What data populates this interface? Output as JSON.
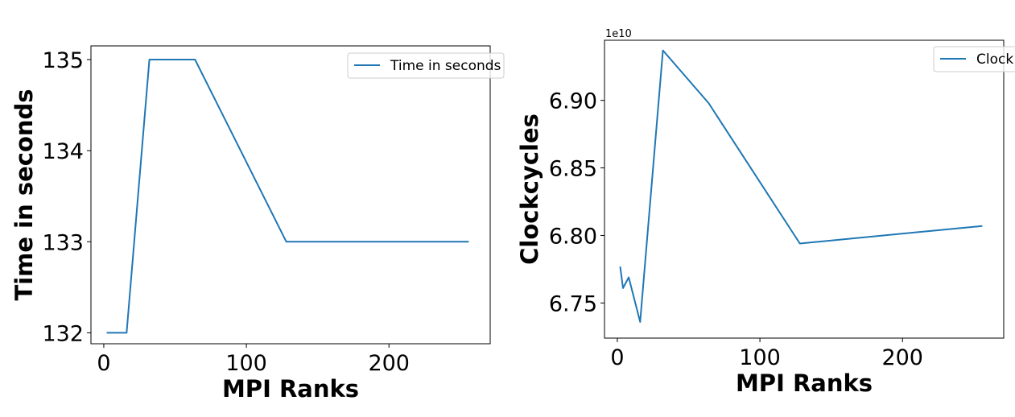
{
  "chart_data": [
    {
      "type": "line",
      "title": "",
      "xlabel": "MPI Ranks",
      "ylabel": "Time in seconds",
      "xlim": [
        -9,
        271
      ],
      "ylim": [
        131.88,
        135.15
      ],
      "xticks": [
        0,
        100,
        200
      ],
      "xtick_labels": [
        "0",
        "100",
        "200"
      ],
      "yticks": [
        132,
        133,
        134,
        135
      ],
      "ytick_labels": [
        "132",
        "133",
        "134",
        "135"
      ],
      "offset_text": "",
      "grid": false,
      "legend_position": "top-right",
      "series": [
        {
          "name": "Time in seconds",
          "color": "#1f77b4",
          "x": [
            2,
            4,
            8,
            16,
            32,
            64,
            128,
            256
          ],
          "y": [
            132,
            132,
            132,
            132,
            135,
            135,
            133,
            133
          ]
        }
      ]
    },
    {
      "type": "line",
      "title": "",
      "xlabel": "MPI Ranks",
      "ylabel": "Clockcycles",
      "xlim": [
        -9,
        271
      ],
      "ylim": [
        6.724,
        6.9445
      ],
      "xticks": [
        0,
        100,
        200
      ],
      "xtick_labels": [
        "0",
        "100",
        "200"
      ],
      "yticks": [
        6.75,
        6.8,
        6.85,
        6.9
      ],
      "ytick_labels": [
        "6.75",
        "6.80",
        "6.85",
        "6.90"
      ],
      "offset_text": "1e10",
      "grid": false,
      "legend_position": "top-right",
      "series": [
        {
          "name": "Clock",
          "color": "#1f77b4",
          "x": [
            2,
            4,
            8,
            16,
            32,
            64,
            128,
            256
          ],
          "y": [
            6.777,
            6.761,
            6.769,
            6.736,
            6.937,
            6.898,
            6.794,
            6.807
          ]
        }
      ]
    }
  ]
}
